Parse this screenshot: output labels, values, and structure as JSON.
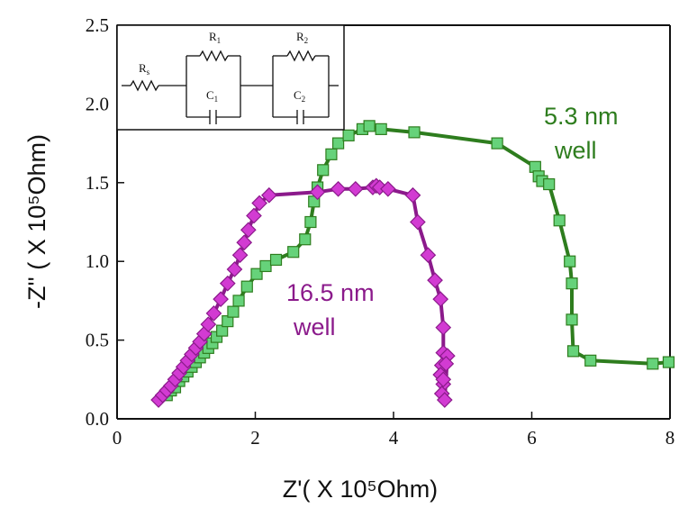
{
  "chart_data": {
    "type": "scatter",
    "xlabel": "Z'( X 10⁵Ohm)",
    "ylabel": "-Z'' ( X 10⁵Ohm)",
    "xlim": [
      0,
      8
    ],
    "ylim": [
      0,
      2.5
    ],
    "x_ticks": [
      "0",
      "2",
      "4",
      "6",
      "8"
    ],
    "y_ticks": [
      "0.0",
      "0.5",
      "1.0",
      "1.5",
      "2.0",
      "2.5"
    ],
    "grid": false,
    "series": [
      {
        "name": "5.3 nm well",
        "color": "#2e7d1e",
        "marker_fill": "#66d27a",
        "marker": "square",
        "points": [
          [
            0.72,
            0.15
          ],
          [
            0.78,
            0.18
          ],
          [
            0.84,
            0.2
          ],
          [
            0.9,
            0.24
          ],
          [
            0.96,
            0.27
          ],
          [
            1.02,
            0.3
          ],
          [
            1.08,
            0.33
          ],
          [
            1.14,
            0.36
          ],
          [
            1.2,
            0.39
          ],
          [
            1.26,
            0.42
          ],
          [
            1.32,
            0.45
          ],
          [
            1.38,
            0.48
          ],
          [
            1.44,
            0.52
          ],
          [
            1.52,
            0.56
          ],
          [
            1.6,
            0.62
          ],
          [
            1.68,
            0.68
          ],
          [
            1.76,
            0.75
          ],
          [
            1.88,
            0.84
          ],
          [
            2.02,
            0.92
          ],
          [
            2.15,
            0.97
          ],
          [
            2.3,
            1.01
          ],
          [
            2.55,
            1.06
          ],
          [
            2.72,
            1.14
          ],
          [
            2.8,
            1.25
          ],
          [
            2.85,
            1.38
          ],
          [
            2.9,
            1.47
          ],
          [
            2.98,
            1.58
          ],
          [
            3.1,
            1.68
          ],
          [
            3.2,
            1.75
          ],
          [
            3.35,
            1.8
          ],
          [
            3.55,
            1.84
          ],
          [
            3.65,
            1.86
          ],
          [
            3.82,
            1.84
          ],
          [
            4.3,
            1.82
          ],
          [
            5.5,
            1.75
          ],
          [
            6.05,
            1.6
          ],
          [
            6.1,
            1.54
          ],
          [
            6.15,
            1.51
          ],
          [
            6.25,
            1.49
          ],
          [
            6.4,
            1.26
          ],
          [
            6.55,
            1.0
          ],
          [
            6.58,
            0.86
          ],
          [
            6.58,
            0.63
          ],
          [
            6.6,
            0.43
          ],
          [
            6.85,
            0.37
          ],
          [
            7.75,
            0.35
          ],
          [
            7.98,
            0.36
          ]
        ]
      },
      {
        "name": "16.5 nm well",
        "color": "#8b1a8b",
        "marker_fill": "#d23bd2",
        "marker": "diamond",
        "points": [
          [
            0.6,
            0.12
          ],
          [
            0.66,
            0.15
          ],
          [
            0.72,
            0.18
          ],
          [
            0.78,
            0.21
          ],
          [
            0.84,
            0.25
          ],
          [
            0.9,
            0.29
          ],
          [
            0.96,
            0.33
          ],
          [
            1.02,
            0.37
          ],
          [
            1.08,
            0.41
          ],
          [
            1.14,
            0.45
          ],
          [
            1.2,
            0.49
          ],
          [
            1.26,
            0.54
          ],
          [
            1.32,
            0.6
          ],
          [
            1.4,
            0.67
          ],
          [
            1.5,
            0.76
          ],
          [
            1.6,
            0.86
          ],
          [
            1.7,
            0.95
          ],
          [
            1.78,
            1.04
          ],
          [
            1.84,
            1.12
          ],
          [
            1.9,
            1.2
          ],
          [
            1.98,
            1.29
          ],
          [
            2.06,
            1.37
          ],
          [
            2.2,
            1.42
          ],
          [
            2.9,
            1.44
          ],
          [
            3.2,
            1.46
          ],
          [
            3.45,
            1.46
          ],
          [
            3.7,
            1.47
          ],
          [
            3.75,
            1.48
          ],
          [
            3.8,
            1.47
          ],
          [
            3.92,
            1.46
          ],
          [
            4.28,
            1.42
          ],
          [
            4.35,
            1.25
          ],
          [
            4.5,
            1.04
          ],
          [
            4.6,
            0.88
          ],
          [
            4.68,
            0.76
          ],
          [
            4.72,
            0.58
          ],
          [
            4.72,
            0.42
          ],
          [
            4.7,
            0.34
          ],
          [
            4.68,
            0.28
          ],
          [
            4.72,
            0.22
          ],
          [
            4.7,
            0.16
          ],
          [
            4.74,
            0.12
          ],
          [
            4.78,
            0.4
          ],
          [
            4.76,
            0.35
          ],
          [
            4.72,
            0.25
          ]
        ]
      }
    ],
    "annotations": [
      {
        "lines": [
          "5.3 nm",
          "well"
        ],
        "color": "#2e7d1e"
      },
      {
        "lines": [
          "16.5 nm",
          "well"
        ],
        "color": "#8b1a8b"
      }
    ],
    "inset": {
      "type": "equivalent-circuit",
      "labels": {
        "rs": "R",
        "rs_sub": "s",
        "r1": "R",
        "r1_sub": "1",
        "c1": "C",
        "c1_sub": "1",
        "r2": "R",
        "r2_sub": "2",
        "c2": "C",
        "c2_sub": "2"
      }
    }
  }
}
